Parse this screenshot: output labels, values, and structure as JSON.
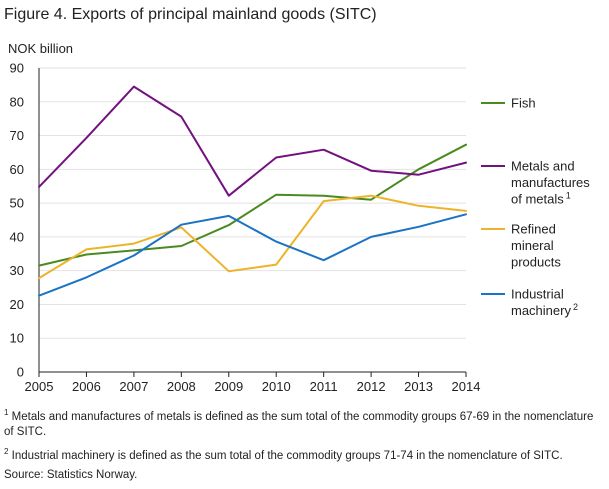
{
  "chart_data": {
    "type": "line",
    "title": "Figure 4. Exports of principal mainland goods (SITC)",
    "ylabel": "NOK billion",
    "xlabel": "",
    "x": [
      2005,
      2006,
      2007,
      2008,
      2009,
      2010,
      2011,
      2012,
      2013,
      2014
    ],
    "ylim": [
      0,
      90
    ],
    "yticks": [
      0,
      10,
      20,
      30,
      40,
      50,
      60,
      70,
      80,
      90
    ],
    "grid": "horizontal",
    "legend_position": "right",
    "series": [
      {
        "name": "Fish",
        "legend_lines": [
          "Fish"
        ],
        "color": "#4a8a1f",
        "values": [
          31.5,
          34.8,
          36,
          37.3,
          43.5,
          52.5,
          52.2,
          51,
          60,
          67.3
        ]
      },
      {
        "name": "Metals and manufactures of metals",
        "legend_lines": [
          "Metals and",
          "manufactures",
          "of metals"
        ],
        "sup": "1",
        "color": "#73127f",
        "values": [
          54.8,
          69.3,
          84.5,
          75.6,
          52.2,
          63.5,
          65.8,
          59.6,
          58.4,
          62
        ]
      },
      {
        "name": "Refined mineral products",
        "legend_lines": [
          "Refined",
          "mineral",
          "products"
        ],
        "color": "#edb32b",
        "values": [
          27.8,
          36.3,
          38,
          42.8,
          29.8,
          31.8,
          50.6,
          52.2,
          49.2,
          47.7
        ]
      },
      {
        "name": "Industrial machinery",
        "legend_lines": [
          "Industrial",
          "machinery"
        ],
        "sup": "2",
        "color": "#1a73c4",
        "values": [
          22.6,
          28,
          34.5,
          43.6,
          46.2,
          38.6,
          33.1,
          40,
          43,
          46.7
        ]
      }
    ]
  },
  "footnotes": {
    "note1_sup": "1",
    "note1": "Metals and manufactures of metals is defined as the sum total of the commodity groups 67-69 in the nomenclature of SITC.",
    "note2_sup": "2",
    "note2": "Industrial machinery is defined as the sum total of the commodity groups 71-74 in the nomenclature of SITC.",
    "source": "Source: Statistics Norway."
  }
}
